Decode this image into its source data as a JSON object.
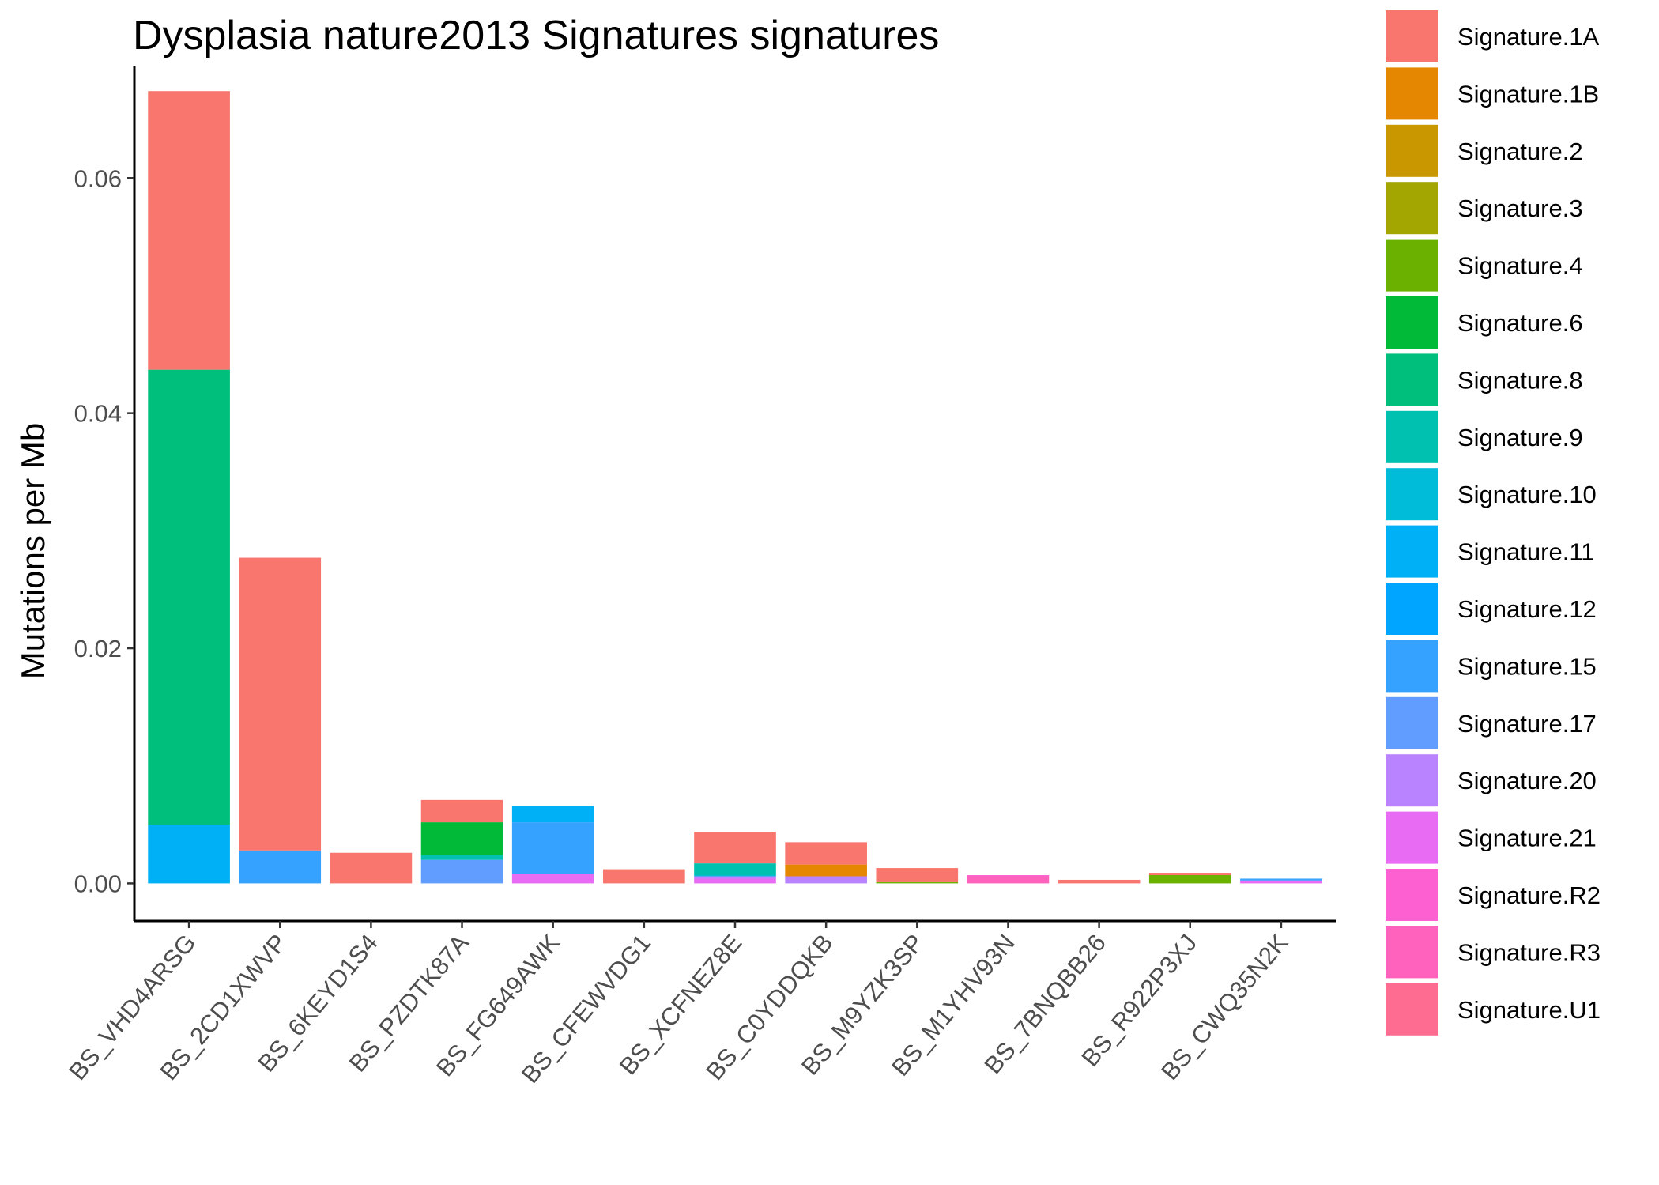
{
  "chart_data": {
    "type": "bar",
    "stacked": true,
    "title": "Dysplasia nature2013 Signatures signatures",
    "xlabel": "",
    "ylabel": "Mutations per Mb",
    "ylim": [
      -0.0032,
      0.0695
    ],
    "yticks": [
      0.0,
      0.02,
      0.04,
      0.06
    ],
    "ytick_labels": [
      "0.00",
      "0.02",
      "0.04",
      "0.06"
    ],
    "grid": false,
    "legend": "right",
    "categories": [
      "BS_VHD4ARSG",
      "BS_2CD1XWVP",
      "BS_6KEYD1S4",
      "BS_PZDTK87A",
      "BS_FG649AWK",
      "BS_CFEWVDG1",
      "BS_XCFNEZ8E",
      "BS_C0YDDQKB",
      "BS_M9YZK3SP",
      "BS_M1YHV93N",
      "BS_7BNQBB26",
      "BS_R922P3XJ",
      "BS_CWQ35N2K"
    ],
    "series": [
      {
        "name": "Signature.1A",
        "color": "#F8766D",
        "values": [
          0.0237,
          0.0249,
          0.0026,
          0.0019,
          0,
          0.0012,
          0.0027,
          0.0019,
          0.0012,
          0,
          0.0003,
          0.0002,
          0
        ]
      },
      {
        "name": "Signature.1B",
        "color": "#E58700",
        "values": [
          0,
          0,
          0,
          0,
          0,
          0,
          0,
          0.001,
          0,
          0,
          0,
          0,
          0
        ]
      },
      {
        "name": "Signature.2",
        "color": "#C99800",
        "values": [
          0,
          0,
          0,
          0,
          0,
          0,
          0,
          0,
          0,
          0,
          0,
          0,
          0
        ]
      },
      {
        "name": "Signature.3",
        "color": "#A3A500",
        "values": [
          0,
          0,
          0,
          0,
          0,
          0,
          0,
          0,
          0,
          0,
          0,
          0,
          0
        ]
      },
      {
        "name": "Signature.4",
        "color": "#6BB100",
        "values": [
          0,
          0,
          0,
          0,
          0,
          0,
          0,
          0,
          0.0001,
          0,
          0,
          0.0007,
          0
        ]
      },
      {
        "name": "Signature.6",
        "color": "#00BA38",
        "values": [
          0,
          0,
          0,
          0.0028,
          0,
          0,
          0,
          0,
          0,
          0,
          0,
          0,
          0
        ]
      },
      {
        "name": "Signature.8",
        "color": "#00BF7D",
        "values": [
          0.0387,
          0,
          0,
          0,
          0,
          0,
          0,
          0,
          0,
          0,
          0,
          0,
          0
        ]
      },
      {
        "name": "Signature.9",
        "color": "#00C0AF",
        "values": [
          0,
          0,
          0,
          0.0004,
          0,
          0,
          0.001,
          0,
          0,
          0,
          0,
          0,
          0
        ]
      },
      {
        "name": "Signature.10",
        "color": "#00BCD8",
        "values": [
          0,
          0,
          0,
          0,
          0,
          0,
          0.0001,
          0,
          0,
          0,
          0,
          0,
          0
        ]
      },
      {
        "name": "Signature.11",
        "color": "#00B0F6",
        "values": [
          0.005,
          0,
          0,
          0,
          0.0014,
          0,
          0,
          0,
          0,
          0,
          0,
          0,
          0
        ]
      },
      {
        "name": "Signature.12",
        "color": "#00A5FF",
        "values": [
          0,
          0,
          0,
          0,
          0,
          0,
          0,
          0,
          0,
          0,
          0,
          0,
          0
        ]
      },
      {
        "name": "Signature.15",
        "color": "#35A2FF",
        "values": [
          0,
          0.0028,
          0,
          0,
          0.0044,
          0,
          0,
          0,
          0,
          0,
          0,
          0,
          0.0001
        ]
      },
      {
        "name": "Signature.17",
        "color": "#619CFF",
        "values": [
          0,
          0,
          0,
          0.002,
          0,
          0,
          0,
          0,
          0,
          0,
          0,
          0,
          0.0001
        ]
      },
      {
        "name": "Signature.20",
        "color": "#B983FF",
        "values": [
          0,
          0,
          0,
          0,
          0,
          0,
          0.0002,
          0.0006,
          0,
          0,
          0,
          0,
          0
        ]
      },
      {
        "name": "Signature.21",
        "color": "#E76BF3",
        "values": [
          0,
          0,
          0,
          0,
          0.0008,
          0,
          0.0004,
          0,
          0,
          0,
          0,
          0,
          0.0002
        ]
      },
      {
        "name": "Signature.R2",
        "color": "#FD61D1",
        "values": [
          0,
          0,
          0,
          0,
          0,
          0,
          0,
          0,
          0,
          0.0001,
          0,
          0,
          0
        ]
      },
      {
        "name": "Signature.R3",
        "color": "#FF62BC",
        "values": [
          0,
          0,
          0,
          0,
          0,
          0,
          0,
          0,
          0,
          0.0006,
          0,
          0,
          0
        ]
      },
      {
        "name": "Signature.U1",
        "color": "#FF6C91",
        "values": [
          0,
          0,
          0,
          0,
          0,
          0,
          0,
          0,
          0,
          0,
          0,
          0,
          0
        ]
      }
    ]
  }
}
